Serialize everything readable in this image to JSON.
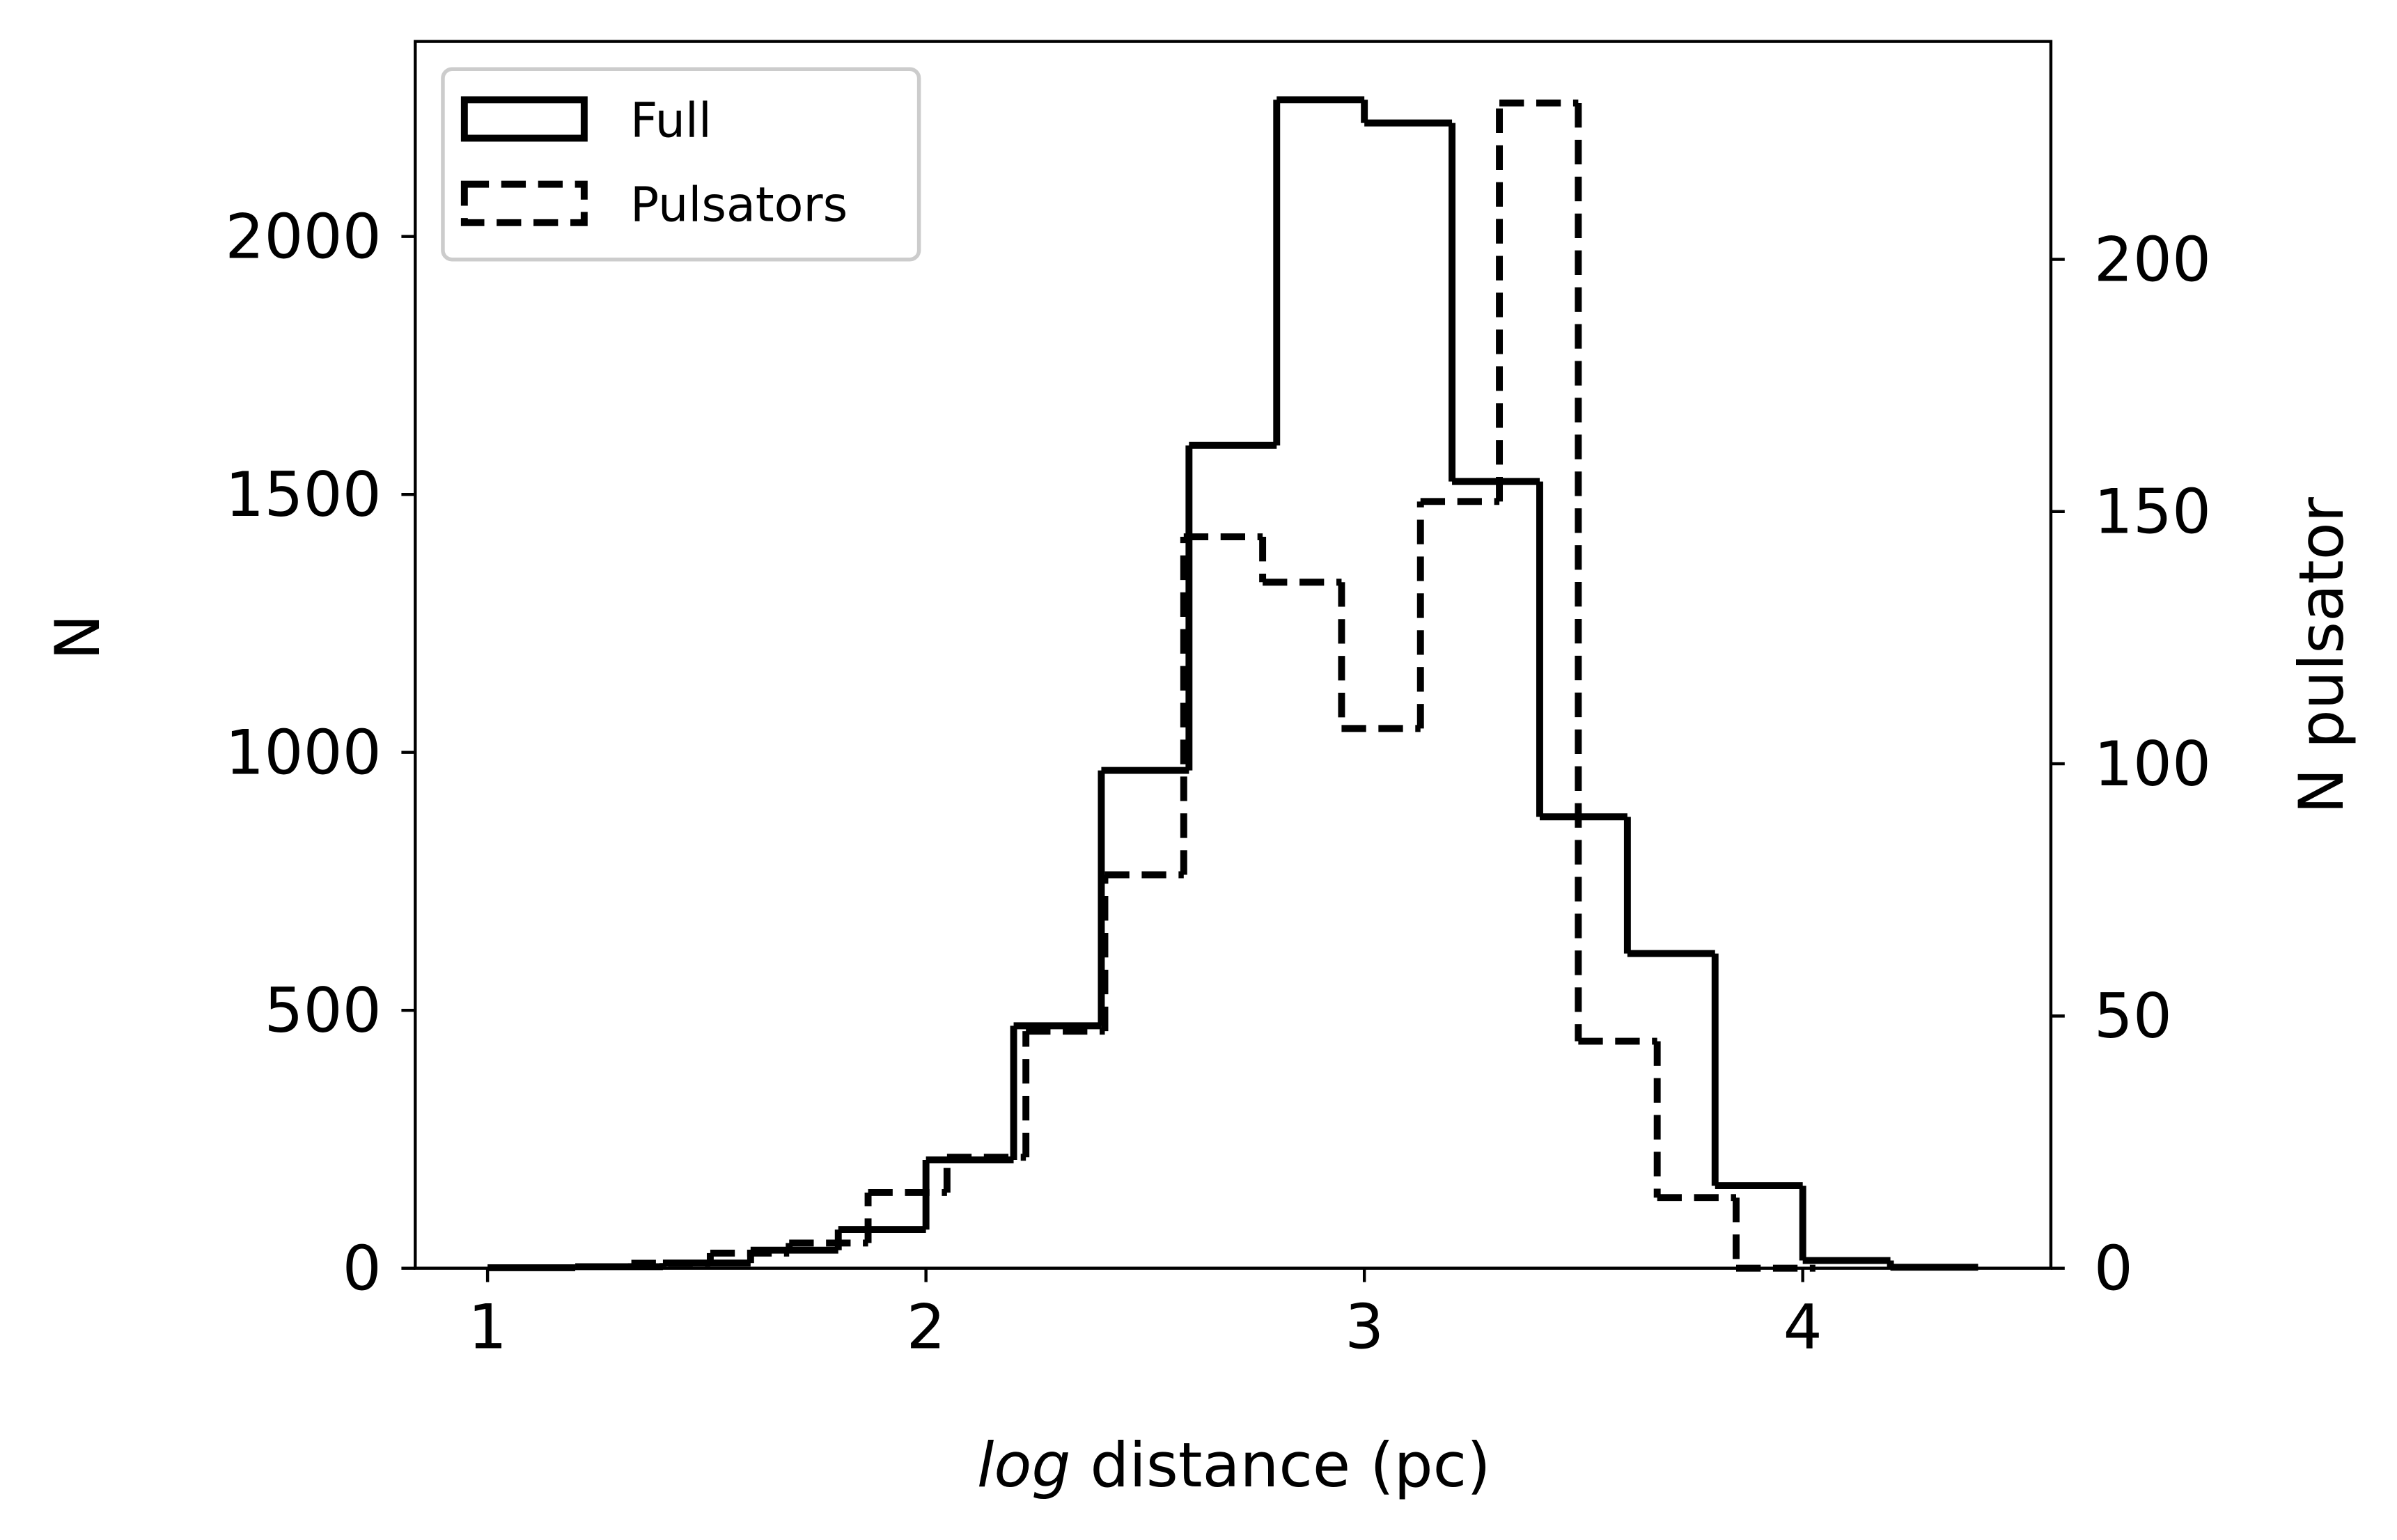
{
  "chart_data": {
    "type": "histogram",
    "xlabel": "log distance (pc)",
    "ylabel": "N",
    "y2label": "N pulsator",
    "xlim": [
      0.835,
      4.566
    ],
    "ylim": [
      0,
      2378
    ],
    "y2lim": [
      0,
      243.2
    ],
    "xticks": [
      1,
      2,
      3,
      4
    ],
    "yticks": [
      0,
      500,
      1000,
      1500,
      2000
    ],
    "y2ticks": [
      0,
      50,
      100,
      150,
      200
    ],
    "legend": "upper left",
    "series": [
      {
        "name": "Full",
        "color": "#000000",
        "style": "solid",
        "bins": [
          1.0,
          1.2,
          1.4,
          1.6,
          1.8,
          2.0,
          2.2,
          2.4,
          2.6,
          2.8,
          3.0,
          3.2,
          3.4,
          3.6,
          3.8,
          4.0,
          4.2,
          4.4
        ],
        "values": [
          1,
          3,
          10,
          35,
          75,
          210,
          470,
          965,
          1595,
          2265,
          2220,
          1525,
          875,
          610,
          160,
          15,
          2
        ]
      },
      {
        "name": "Pulsators",
        "color": "#000000",
        "style": "dashed",
        "axis": "y2",
        "bins": [
          1.328,
          1.508,
          1.688,
          1.868,
          2.048,
          2.228,
          2.408,
          2.588,
          2.768,
          2.948,
          3.128,
          3.308,
          3.488,
          3.668,
          3.848,
          4.028
        ],
        "values": [
          1,
          3,
          5,
          15,
          22,
          47,
          78,
          145,
          136,
          107,
          152,
          231,
          45,
          14,
          0
        ]
      }
    ]
  }
}
